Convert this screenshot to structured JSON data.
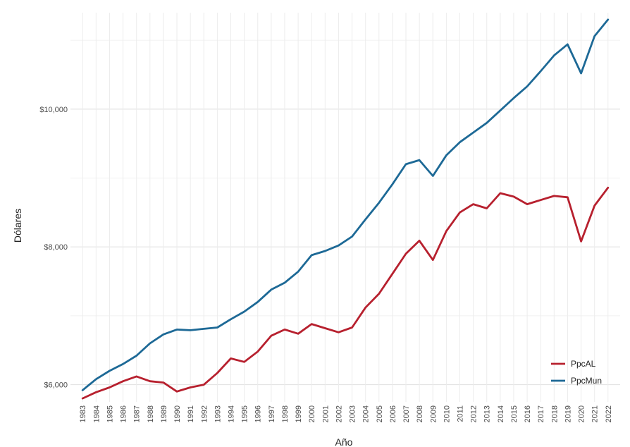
{
  "chart_data": {
    "type": "line",
    "title": "",
    "xlabel": "Año",
    "ylabel": "Dólares",
    "x": [
      1983,
      1984,
      1985,
      1986,
      1987,
      1988,
      1989,
      1990,
      1991,
      1992,
      1993,
      1994,
      1995,
      1996,
      1997,
      1998,
      1999,
      2000,
      2001,
      2002,
      2003,
      2004,
      2005,
      2006,
      2007,
      2008,
      2009,
      2010,
      2011,
      2012,
      2013,
      2014,
      2015,
      2016,
      2017,
      2018,
      2019,
      2020,
      2021,
      2022
    ],
    "x_tick_labels": [
      "1983",
      "1984",
      "1985",
      "1986",
      "1987",
      "1988",
      "1989",
      "1990",
      "1991",
      "1992",
      "1993",
      "1994",
      "1995",
      "1996",
      "1997",
      "1998",
      "1999",
      "2000",
      "2001",
      "2002",
      "2003",
      "2004",
      "2005",
      "2006",
      "2007",
      "2008",
      "2009",
      "2010",
      "2011",
      "2012",
      "2013",
      "2014",
      "2015",
      "2016",
      "2017",
      "2018",
      "2019",
      "2020",
      "2021",
      "2022"
    ],
    "y_ticks": [
      6000,
      8000,
      10000
    ],
    "y_tick_labels": [
      "$6,000",
      "$8,000",
      "$10,000"
    ],
    "ylim": [
      5750,
      11400
    ],
    "grid": true,
    "legend_position": "bottom-right",
    "series": [
      {
        "name": "PpcAL",
        "color": "#b7202e",
        "values": [
          5800,
          5890,
          5960,
          6050,
          6120,
          6050,
          6030,
          5900,
          5960,
          6000,
          6170,
          6380,
          6330,
          6480,
          6710,
          6800,
          6740,
          6880,
          6820,
          6760,
          6830,
          7120,
          7320,
          7610,
          7900,
          8090,
          7810,
          8230,
          8500,
          8620,
          8560,
          8780,
          8730,
          8620,
          8680,
          8740,
          8720,
          8080,
          8600,
          8860
        ]
      },
      {
        "name": "PpcMun",
        "color": "#1d6996",
        "values": [
          5920,
          6080,
          6200,
          6300,
          6420,
          6600,
          6730,
          6800,
          6790,
          6810,
          6830,
          6950,
          7060,
          7200,
          7380,
          7480,
          7640,
          7880,
          7940,
          8020,
          8150,
          8400,
          8640,
          8910,
          9200,
          9260,
          9030,
          9330,
          9520,
          9660,
          9800,
          9980,
          10160,
          10330,
          10550,
          10780,
          10940,
          10520,
          11060,
          11300
        ]
      }
    ]
  }
}
